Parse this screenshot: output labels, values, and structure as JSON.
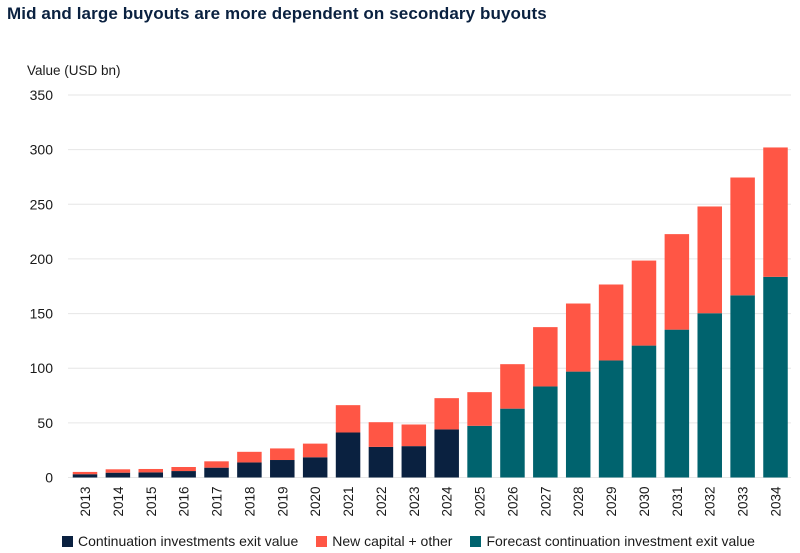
{
  "title": "Mid and large buyouts are more dependent on secondary buyouts",
  "colors": {
    "continuation": "#0a2140",
    "new_capital": "#ff5645",
    "forecast": "#00636e",
    "grid": "#e6e6e6"
  },
  "chart_data": {
    "type": "bar",
    "stacked": true,
    "title": "Mid and large buyouts are more dependent on secondary buyouts",
    "xlabel": "",
    "ylabel": "Value (USD bn)",
    "ylim": [
      0,
      350
    ],
    "yticks": [
      0,
      50,
      100,
      150,
      200,
      250,
      300,
      350
    ],
    "grid": true,
    "legend_position": "bottom",
    "categories": [
      "2013",
      "2014",
      "2015",
      "2016",
      "2017",
      "2018",
      "2019",
      "2020",
      "2021",
      "2022",
      "2023",
      "2024",
      "2025",
      "2026",
      "2027",
      "2028",
      "2029",
      "2030",
      "2031",
      "2032",
      "2033",
      "2034"
    ],
    "series": [
      {
        "name": "Continuation investments exit value",
        "color_key": "continuation",
        "values": [
          3,
          4.4,
          4.7,
          5.9,
          9,
          13.8,
          16,
          18.5,
          41.2,
          28,
          28.7,
          44,
          null,
          null,
          null,
          null,
          null,
          null,
          null,
          null,
          null,
          null
        ]
      },
      {
        "name": "Forecast continuation investment exit value",
        "color_key": "forecast",
        "values": [
          null,
          null,
          null,
          null,
          null,
          null,
          null,
          null,
          null,
          null,
          null,
          null,
          47.3,
          63,
          83.3,
          96.9,
          107.1,
          120.7,
          135.3,
          150.3,
          166.7,
          183.6
        ]
      },
      {
        "name": "New capital + other",
        "color_key": "new_capital",
        "values": [
          2.1,
          3.1,
          3.1,
          3.7,
          5.8,
          9.7,
          10.6,
          12.5,
          25,
          22.6,
          19.8,
          28.6,
          30.8,
          40.7,
          54.3,
          62.3,
          69.5,
          77.8,
          87.4,
          97.7,
          107.8,
          118.4
        ]
      }
    ],
    "totals": [
      5.1,
      7.5,
      7.8,
      9.6,
      14.8,
      23.5,
      26.6,
      31,
      66.2,
      50.6,
      48.5,
      72.6,
      78.1,
      103.7,
      137.6,
      159.2,
      176.6,
      198.5,
      222.7,
      248,
      274.5,
      302
    ]
  },
  "legend": [
    {
      "label": "Continuation investments exit value",
      "color_key": "continuation"
    },
    {
      "label": "New capital + other",
      "color_key": "new_capital"
    },
    {
      "label": "Forecast continuation investment exit value",
      "color_key": "forecast"
    }
  ]
}
